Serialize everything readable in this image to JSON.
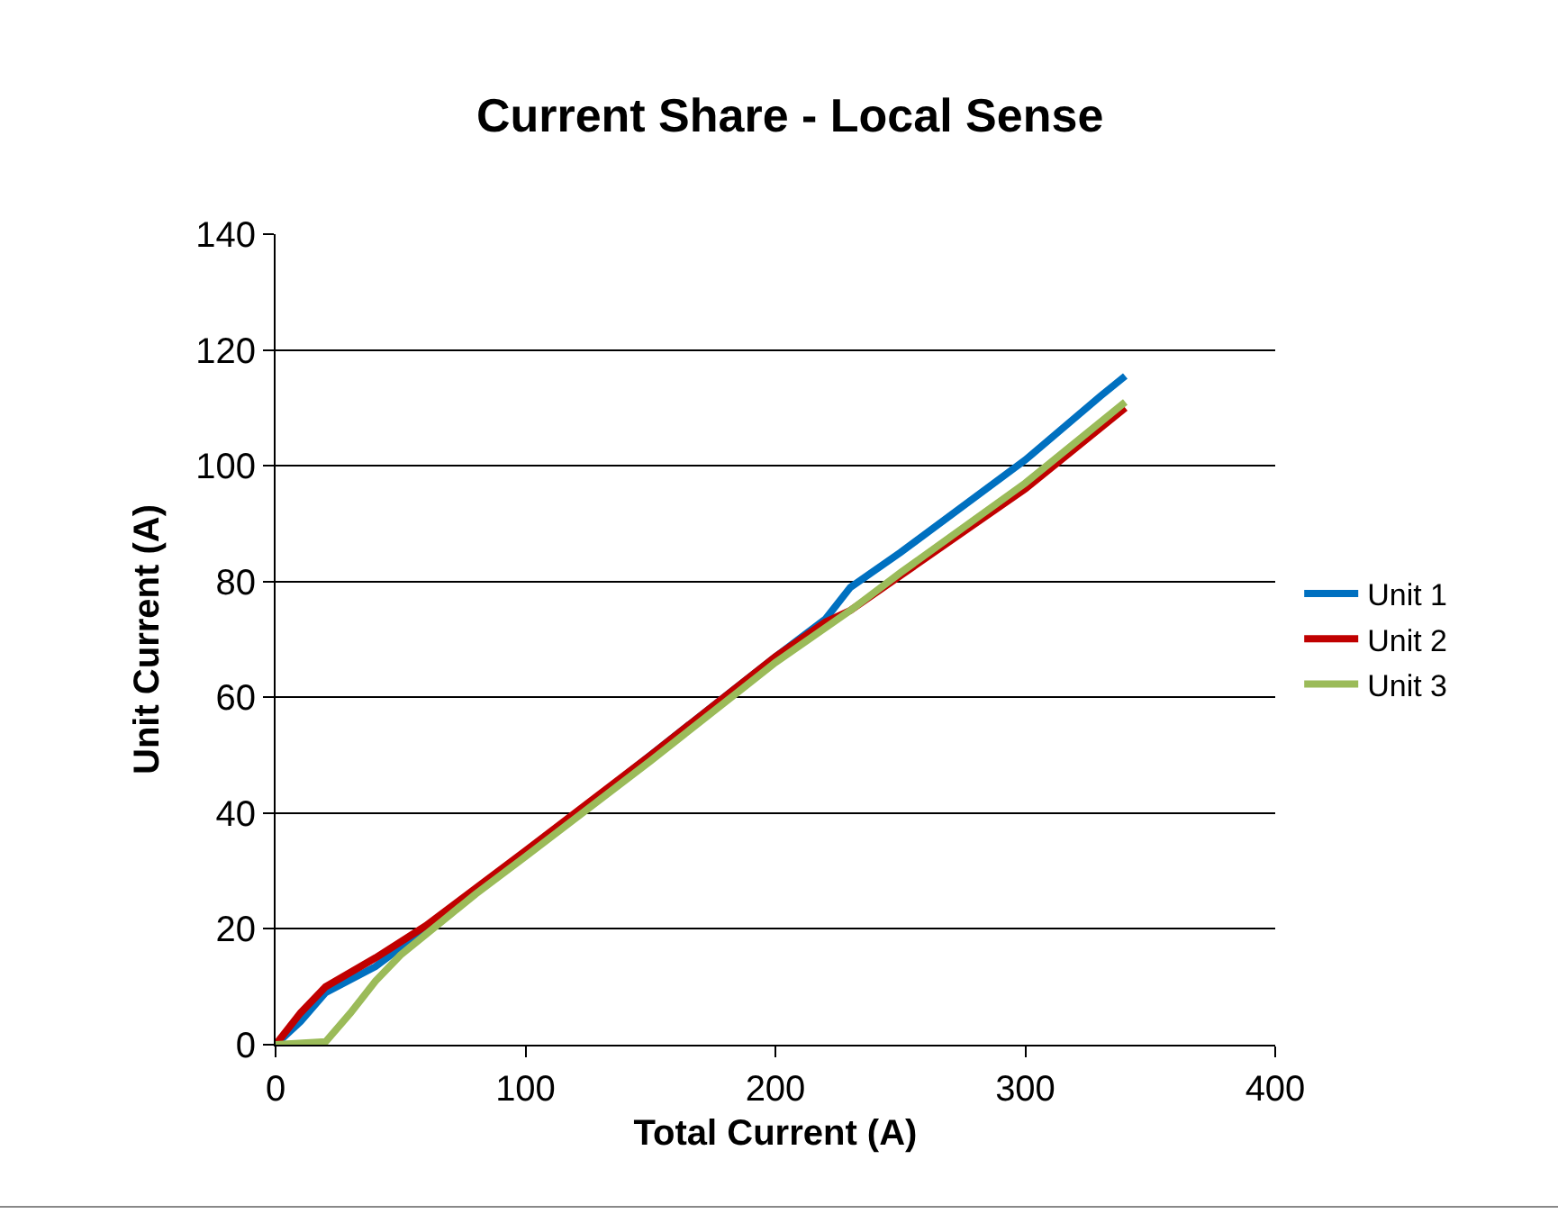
{
  "chart_data": {
    "type": "line",
    "title": "Current Share - Local Sense",
    "xlabel": "Total Current (A)",
    "ylabel": "Unit Current (A)",
    "xlim": [
      0,
      400
    ],
    "xticks": [
      0,
      100,
      200,
      300,
      400
    ],
    "ylim": [
      0,
      140
    ],
    "yticks": [
      0,
      20,
      40,
      60,
      80,
      100,
      120,
      140
    ],
    "grid": "y",
    "legend": "right",
    "marker": "none",
    "series": [
      {
        "name": "Unit 1",
        "color": "#0070c0",
        "x": [
          0,
          10,
          20,
          40,
          60,
          80,
          100,
          150,
          200,
          220,
          230,
          250,
          300,
          330,
          340
        ],
        "values": [
          0,
          4,
          9,
          13.5,
          20,
          26.5,
          33,
          50,
          67,
          73.5,
          79,
          85,
          101,
          112,
          115.5
        ]
      },
      {
        "name": "Unit 2",
        "color": "#c00000",
        "x": [
          0,
          10,
          20,
          40,
          60,
          80,
          100,
          150,
          200,
          220,
          230,
          250,
          300,
          340
        ],
        "values": [
          0,
          5.5,
          10,
          15,
          20.5,
          27,
          33.5,
          50,
          67,
          73,
          75,
          81,
          96,
          110
        ]
      },
      {
        "name": "Unit 3",
        "color": "#9bbb59",
        "x": [
          0,
          20,
          30,
          40,
          50,
          60,
          80,
          100,
          150,
          200,
          230,
          250,
          300,
          340
        ],
        "values": [
          0,
          0.5,
          5.5,
          11,
          15.5,
          19,
          26,
          32.5,
          49,
          66,
          75,
          81.5,
          97,
          111
        ]
      }
    ]
  }
}
